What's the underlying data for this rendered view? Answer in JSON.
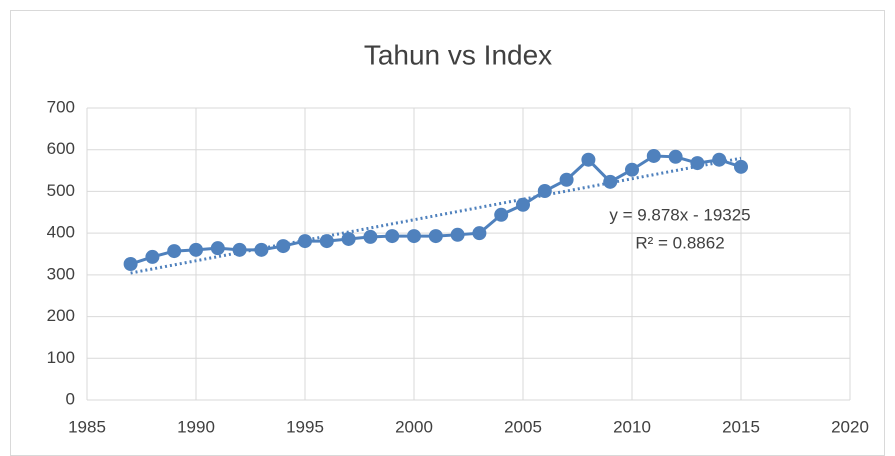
{
  "chart_data": {
    "type": "scatter",
    "title": "Tahun vs Index",
    "x": [
      1987,
      1988,
      1989,
      1990,
      1991,
      1992,
      1993,
      1994,
      1995,
      1996,
      1997,
      1998,
      1999,
      2000,
      2001,
      2002,
      2003,
      2004,
      2005,
      2006,
      2007,
      2008,
      2009,
      2010,
      2011,
      2012,
      2013,
      2014,
      2015
    ],
    "series": [
      {
        "name": "Index",
        "color": "#4f81bd",
        "values": [
          326,
          343,
          357,
          360,
          364,
          360,
          360,
          369,
          381,
          381,
          386,
          391,
          393,
          393,
          393,
          396,
          400,
          444,
          468,
          501,
          528,
          576,
          523,
          552,
          585,
          583,
          568,
          576,
          559
        ]
      }
    ],
    "trendline": "linear",
    "annotations": [
      "y = 9.878x - 19325",
      "R² = 0.8862"
    ],
    "xlim": [
      1985,
      2020
    ],
    "xticks": [
      1985,
      1990,
      1995,
      2000,
      2005,
      2010,
      2015,
      2020
    ],
    "ylim": [
      0,
      700
    ],
    "yticks": [
      0,
      100,
      200,
      300,
      400,
      500,
      600,
      700
    ],
    "grid": true
  }
}
